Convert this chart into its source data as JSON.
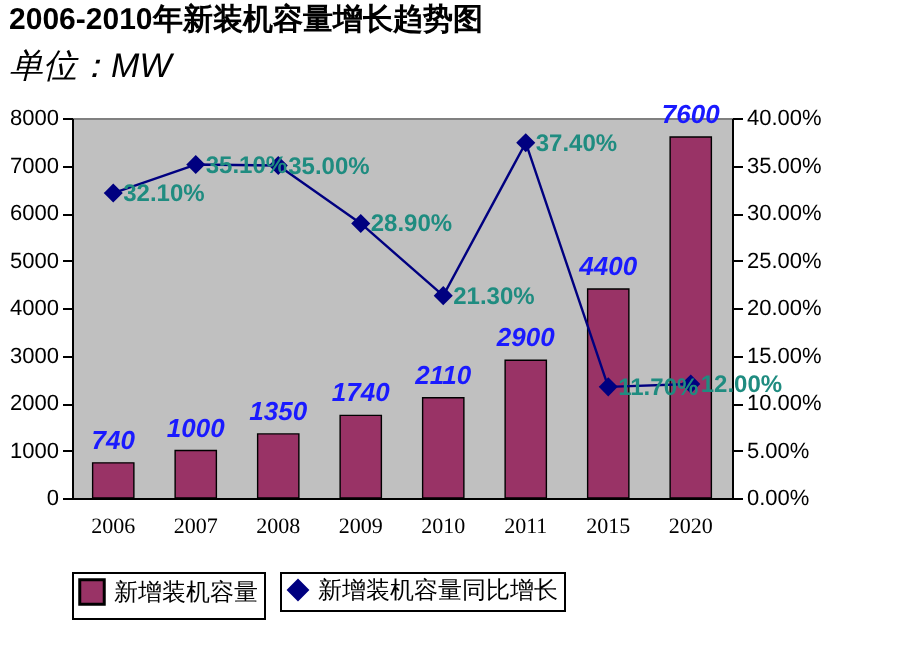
{
  "chart_data": {
    "type": "bar",
    "title": "2006-2010年新装机容量增长趋势图",
    "subtitle": "单位：MW",
    "categories": [
      "2006",
      "2007",
      "2008",
      "2009",
      "2010",
      "2011",
      "2015",
      "2020"
    ],
    "series": [
      {
        "name": "新增装机容量",
        "color": "#993366",
        "values": [
          740,
          1000,
          1350,
          1740,
          2110,
          2900,
          4400,
          7600
        ],
        "value_labels": [
          "740",
          "1000",
          "1350",
          "1740",
          "2110",
          "2900",
          "4400",
          "7600"
        ]
      },
      {
        "name": "新增装机容量同比增长",
        "type": "line",
        "axis": "y2",
        "color": "#000080",
        "marker": "diamond",
        "values": [
          32.1,
          35.1,
          35.0,
          28.9,
          21.3,
          37.4,
          11.7,
          12.0
        ],
        "value_labels": [
          "32.10%",
          "35.10%",
          "35.00%",
          "28.90%",
          "21.30%",
          "37.40%",
          "11.70%",
          "12.00%"
        ]
      }
    ],
    "ylim": [
      0,
      8000
    ],
    "yticks": [
      0,
      1000,
      2000,
      3000,
      4000,
      5000,
      6000,
      7000,
      8000
    ],
    "y2lim": [
      0,
      40
    ],
    "y2ticks": [
      {
        "value": 0,
        "label": "0.00%"
      },
      {
        "value": 5,
        "label": "5.00%"
      },
      {
        "value": 10,
        "label": "10.00%"
      },
      {
        "value": 15,
        "label": "15.00%"
      },
      {
        "value": 20,
        "label": "20.00%"
      },
      {
        "value": 25,
        "label": "25.00%"
      },
      {
        "value": 30,
        "label": "30.00%"
      },
      {
        "value": 35,
        "label": "35.00%"
      },
      {
        "value": 40,
        "label": "40.00%"
      }
    ],
    "legend": "bottom"
  }
}
